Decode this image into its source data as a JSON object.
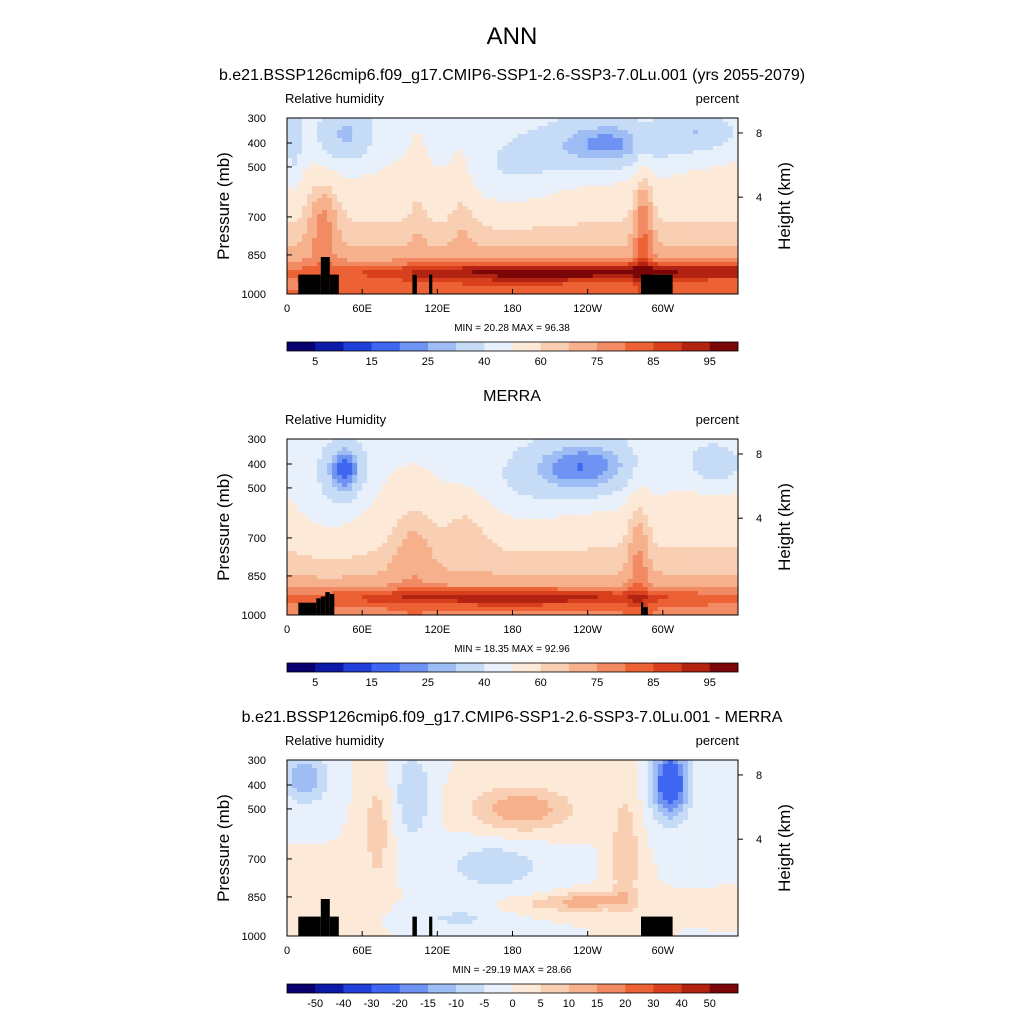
{
  "figure": {
    "title": "ANN"
  },
  "chart_data": [
    {
      "type": "heatmap",
      "title": "b.e21.BSSP126cmip6.f09_g17.CMIP6-SSP1-2.6-SSP3-7.0Lu.001 (yrs 2055-2079)",
      "left_label": "Relative humidity",
      "right_label": "percent",
      "ylabel": "Pressure (mb)",
      "y2label": "Height (km)",
      "xticks": [
        "0",
        "60E",
        "120E",
        "180",
        "120W",
        "60W"
      ],
      "yticks": [
        "300",
        "400",
        "500",
        "700",
        "850",
        "1000"
      ],
      "y2ticks": [
        "8",
        "4"
      ],
      "stats": "MIN = 20.28  MAX = 96.38",
      "colorbar_labels": [
        "5",
        "15",
        "25",
        "40",
        "60",
        "75",
        "85",
        "95"
      ],
      "palette": "rh"
    },
    {
      "type": "heatmap",
      "title": "MERRA",
      "left_label": "Relative Humidity",
      "right_label": "percent",
      "ylabel": "Pressure (mb)",
      "y2label": "Height (km)",
      "xticks": [
        "0",
        "60E",
        "120E",
        "180",
        "120W",
        "60W"
      ],
      "yticks": [
        "300",
        "400",
        "500",
        "700",
        "850",
        "1000"
      ],
      "y2ticks": [
        "8",
        "4"
      ],
      "stats": "MIN = 18.35  MAX = 92.96",
      "colorbar_labels": [
        "5",
        "15",
        "25",
        "40",
        "60",
        "75",
        "85",
        "95"
      ],
      "palette": "rh"
    },
    {
      "type": "heatmap",
      "title": "b.e21.BSSP126cmip6.f09_g17.CMIP6-SSP1-2.6-SSP3-7.0Lu.001 - MERRA",
      "left_label": "Relative humidity",
      "right_label": "percent",
      "ylabel": "Pressure (mb)",
      "y2label": "Height (km)",
      "xticks": [
        "0",
        "60E",
        "120E",
        "180",
        "120W",
        "60W"
      ],
      "yticks": [
        "300",
        "400",
        "500",
        "700",
        "850",
        "1000"
      ],
      "y2ticks": [
        "8",
        "4"
      ],
      "stats": "MIN = -29.19  MAX = 28.66",
      "colorbar_labels": [
        "-50",
        "-40",
        "-30",
        "-20",
        "-15",
        "-10",
        "-5",
        "0",
        "5",
        "10",
        "15",
        "20",
        "30",
        "40",
        "50"
      ],
      "palette": "diff"
    }
  ],
  "colors": {
    "rh": [
      "#08006e",
      "#0c1aa8",
      "#1f3fd8",
      "#3e66f0",
      "#6e93f2",
      "#9ebdf4",
      "#c6dcf6",
      "#e8f1fb",
      "#fde9d8",
      "#f9cfb4",
      "#f6b08c",
      "#f28a63",
      "#ec6234",
      "#d8401d",
      "#b32312",
      "#7b0607"
    ],
    "diff": [
      "#08006e",
      "#0c1aa8",
      "#1f3fd8",
      "#3e66f0",
      "#6e93f2",
      "#9ebdf4",
      "#c6dcf6",
      "#e8f1fb",
      "#fde9d8",
      "#f9cfb4",
      "#f6b08c",
      "#f28a63",
      "#ec6234",
      "#d8401d",
      "#b32312",
      "#7b0607"
    ]
  }
}
